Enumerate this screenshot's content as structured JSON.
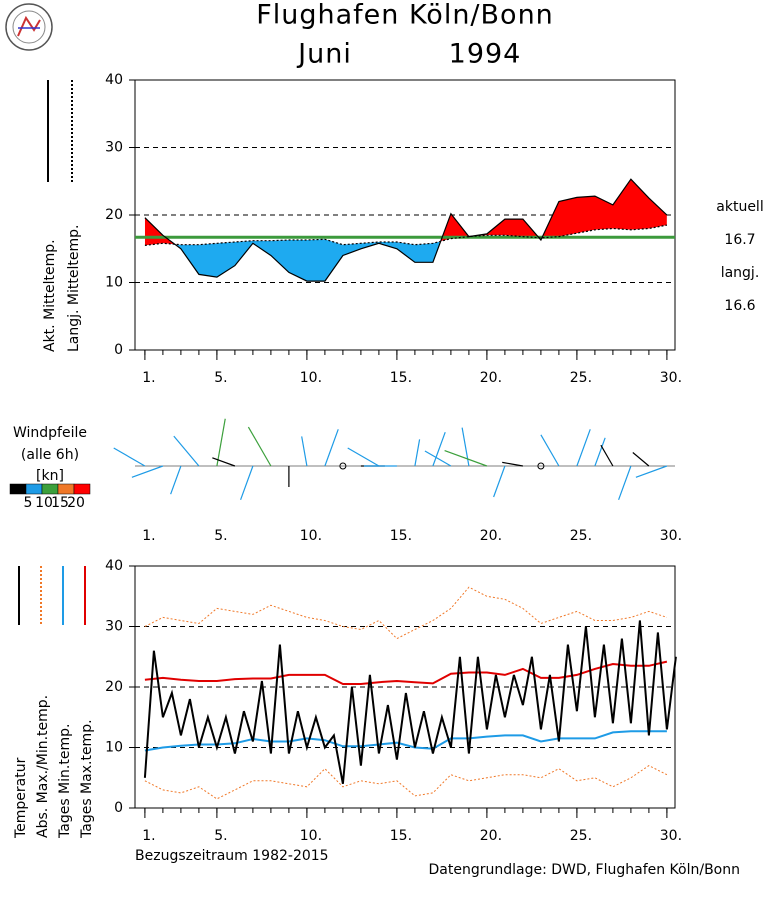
{
  "title": "Flughafen Köln/Bonn",
  "month": "Juni",
  "year": "1994",
  "reference_period": "Bezugszeitraum 1982-2015",
  "source": "Datengrundlage: DWD, Flughafen Köln/Bonn",
  "chart_data": [
    {
      "type": "line",
      "x": [
        1,
        2,
        3,
        4,
        5,
        6,
        7,
        8,
        9,
        10,
        11,
        12,
        13,
        14,
        15,
        16,
        17,
        18,
        19,
        20,
        21,
        22,
        23,
        24,
        25,
        26,
        27,
        28,
        29,
        30
      ],
      "xlim": [
        0.45,
        30.45
      ],
      "xticks": [
        {
          "value": 1,
          "label": "1."
        },
        {
          "value": 5,
          "label": "5."
        },
        {
          "value": 10,
          "label": "10."
        },
        {
          "value": 15,
          "label": "15."
        },
        {
          "value": 20,
          "label": "20."
        },
        {
          "value": 25,
          "label": "25."
        },
        {
          "value": 30,
          "label": "30."
        }
      ],
      "ylim": [
        0,
        40
      ],
      "yticks": [
        0,
        10,
        20,
        30,
        40
      ],
      "grid": true,
      "above_color": "#ff0000",
      "below_color": "#1eaaf0",
      "series": [
        {
          "name": "Akt. Mitteltemp.",
          "color": "#000000",
          "dash": "solid",
          "values": [
            19.6,
            17.0,
            15.0,
            11.2,
            10.8,
            12.5,
            15.8,
            14.0,
            11.5,
            10.2,
            10.2,
            14.0,
            15.0,
            15.8,
            15.0,
            13.0,
            13.0,
            20.2,
            16.8,
            17.2,
            19.4,
            19.4,
            16.3,
            22.0,
            22.6,
            22.8,
            21.5,
            25.3,
            22.5,
            20.0
          ]
        },
        {
          "name": "Langj. Mitteltemp.",
          "color": "#000000",
          "dash": "dotted",
          "values": [
            15.5,
            15.8,
            15.6,
            15.6,
            15.8,
            16.0,
            16.2,
            16.2,
            16.3,
            16.3,
            16.4,
            15.6,
            15.8,
            16.0,
            16.0,
            15.6,
            15.8,
            16.5,
            16.8,
            17.0,
            17.0,
            16.8,
            16.6,
            16.8,
            17.3,
            17.8,
            18.0,
            17.8,
            18.0,
            18.5
          ]
        }
      ],
      "current_label": "aktuell",
      "current_mean": 16.7,
      "current_color": "#3c9a3c",
      "longterm_label": "langj.",
      "longterm_mean": 16.6,
      "longterm_color": "#f07828"
    },
    {
      "type": "wind",
      "title": "Windpfeile",
      "subtitle": "(alle 6h)",
      "unit": "[kn]",
      "x": [
        1,
        2,
        3,
        4,
        5,
        6,
        7,
        8,
        9,
        10,
        11,
        12,
        13,
        14,
        15,
        16,
        17,
        18,
        19,
        20,
        21,
        22,
        23,
        24,
        25,
        26,
        27,
        28,
        29,
        30
      ],
      "direction": [
        300,
        250,
        200,
        320,
        10,
        290,
        200,
        330,
        180,
        350,
        20,
        0,
        90,
        300,
        270,
        10,
        20,
        300,
        350,
        290,
        200,
        280,
        0,
        330,
        20,
        20,
        330,
        200,
        310,
        250
      ],
      "speed": [
        8,
        7,
        6,
        9,
        12,
        4,
        8,
        11,
        3,
        6,
        9,
        0,
        4,
        8,
        7,
        5,
        8,
        6,
        9,
        11,
        7,
        3,
        0,
        8,
        9,
        6,
        4,
        8,
        3,
        7
      ],
      "colorbar_colors": [
        "#000000",
        "#1e9be6",
        "#3ca03c",
        "#f07828",
        "#ff0000"
      ],
      "colorbar_ticks": [
        5,
        10,
        15,
        20
      ]
    },
    {
      "type": "line",
      "x": [
        1,
        2,
        3,
        4,
        5,
        6,
        7,
        8,
        9,
        10,
        11,
        12,
        13,
        14,
        15,
        16,
        17,
        18,
        19,
        20,
        21,
        22,
        23,
        24,
        25,
        26,
        27,
        28,
        29,
        30
      ],
      "xlim": [
        0.45,
        30.45
      ],
      "xticks": [
        {
          "value": 1,
          "label": "1."
        },
        {
          "value": 5,
          "label": "5."
        },
        {
          "value": 10,
          "label": "10."
        },
        {
          "value": 15,
          "label": "15."
        },
        {
          "value": 20,
          "label": "20."
        },
        {
          "value": 25,
          "label": "25."
        },
        {
          "value": 30,
          "label": "30."
        }
      ],
      "ylim": [
        0,
        40
      ],
      "yticks": [
        0,
        10,
        20,
        30,
        40
      ],
      "grid": true,
      "series": [
        {
          "name": "Temperatur",
          "color": "#000000",
          "dash": "solid",
          "x": [
            1,
            1.5,
            2,
            2.5,
            3,
            3.5,
            4,
            4.5,
            5,
            5.5,
            6,
            6.5,
            7,
            7.5,
            8,
            8.5,
            9,
            9.5,
            10,
            10.5,
            11,
            11.5,
            12,
            12.5,
            13,
            13.5,
            14,
            14.5,
            15,
            15.5,
            16,
            16.5,
            17,
            17.5,
            18,
            18.5,
            19,
            19.5,
            20,
            20.5,
            21,
            21.5,
            22,
            22.5,
            23,
            23.5,
            24,
            24.5,
            25,
            25.5,
            26,
            26.5,
            27,
            27.5,
            28,
            28.5,
            29,
            29.5,
            30,
            30.5
          ],
          "values": [
            5,
            26,
            15,
            19,
            12,
            18,
            10,
            15,
            10,
            15,
            9,
            16,
            11,
            21,
            9,
            27,
            9,
            16,
            10,
            15,
            10,
            12,
            4,
            20,
            7,
            22,
            9,
            17,
            8,
            19,
            10,
            16,
            9,
            15,
            10,
            25,
            9,
            25,
            13,
            22,
            15,
            22,
            17,
            25,
            13,
            22,
            11,
            27,
            16,
            30,
            15,
            27,
            14,
            28,
            14,
            31,
            12,
            29,
            13,
            25
          ]
        },
        {
          "name": "Abs. Max./Min.temp.",
          "color": "#f07828",
          "dash": "dotted",
          "values": [
            30,
            31.5,
            31,
            30.5,
            33,
            32.5,
            32,
            33.5,
            32.5,
            31.5,
            31,
            30,
            29.5,
            31,
            28,
            29.5,
            31,
            33,
            36.5,
            35,
            34.5,
            33,
            30.5,
            31.5,
            32.5,
            31,
            31,
            31.5,
            32.5,
            31.5
          ],
          "min_values": [
            4.5,
            3,
            2.5,
            3.5,
            1.5,
            3,
            4.5,
            4.5,
            4,
            3.5,
            6.5,
            3.5,
            4.5,
            4,
            4.5,
            2,
            2.5,
            5.5,
            4.5,
            5,
            5.5,
            5.5,
            5,
            6.5,
            4.5,
            5,
            3.5,
            5,
            7,
            5.5
          ]
        },
        {
          "name": "Tages Min.temp.",
          "color": "#1e9be6",
          "dash": "solid",
          "values": [
            9.5,
            10,
            10.3,
            10.5,
            10.5,
            10.7,
            11.4,
            11.0,
            11.0,
            11.5,
            11.2,
            10.2,
            10.2,
            10.5,
            10.8,
            10.0,
            9.8,
            11.5,
            11.5,
            11.8,
            12.0,
            12.0,
            11.0,
            11.5,
            11.5,
            11.5,
            12.5,
            12.7,
            12.7,
            12.7
          ]
        },
        {
          "name": "Tages Max.temp.",
          "color": "#e00000",
          "dash": "solid",
          "values": [
            21.2,
            21.5,
            21.2,
            21.0,
            21.0,
            21.3,
            21.4,
            21.4,
            22.0,
            22.0,
            22.0,
            20.5,
            20.5,
            20.8,
            21.0,
            20.8,
            20.6,
            22.2,
            22.4,
            22.4,
            22.0,
            23.0,
            21.5,
            21.5,
            22.0,
            23.0,
            23.8,
            23.5,
            23.5,
            24.2
          ]
        }
      ]
    }
  ]
}
